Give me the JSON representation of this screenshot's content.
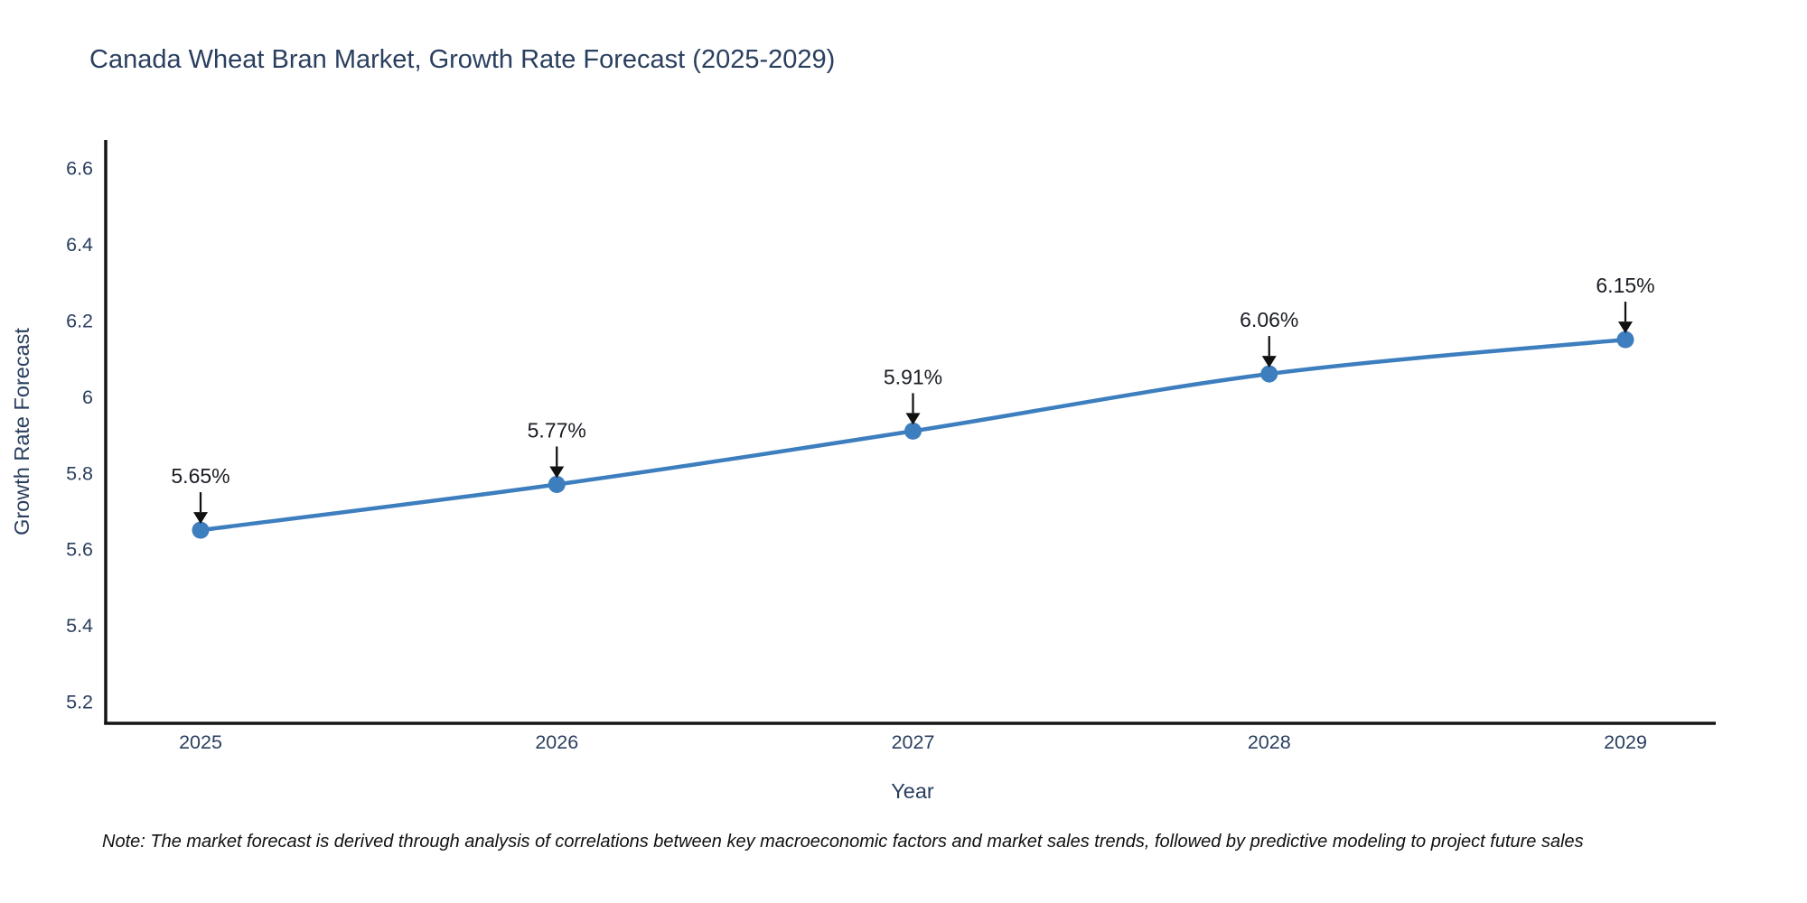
{
  "title": "Canada Wheat Bran Market, Growth Rate Forecast (2025-2029)",
  "note": "Note: The market forecast is derived through analysis of correlations between key macroeconomic factors and market sales trends, followed by predictive modeling to project future sales",
  "chart_data": {
    "type": "line",
    "title": "Canada Wheat Bran Market, Growth Rate Forecast (2025-2029)",
    "xlabel": "Year",
    "ylabel": "Growth Rate Forecast",
    "categories": [
      "2025",
      "2026",
      "2027",
      "2028",
      "2029"
    ],
    "series": [
      {
        "name": "Growth Rate Forecast",
        "values": [
          5.65,
          5.77,
          5.91,
          6.06,
          6.15
        ],
        "point_labels": [
          "5.65%",
          "5.77%",
          "5.91%",
          "6.06%",
          "6.15%"
        ]
      }
    ],
    "y_ticks": [
      5.2,
      5.4,
      5.6,
      5.8,
      6,
      6.2,
      6.4,
      6.6
    ],
    "ylim": [
      5.14,
      6.67
    ],
    "grid": false,
    "legend_position": "none",
    "marker_style": "circle",
    "annotation_arrows": true,
    "colors": {
      "line": "#3d7ebf",
      "marker": "#3d7ebf",
      "axis_line": "#151515",
      "axis_text": "#2a3f5f",
      "annotation_text": "#1a1d24",
      "arrow": "#111111",
      "title_text": "#2a3f5f",
      "background": "#ffffff"
    }
  }
}
